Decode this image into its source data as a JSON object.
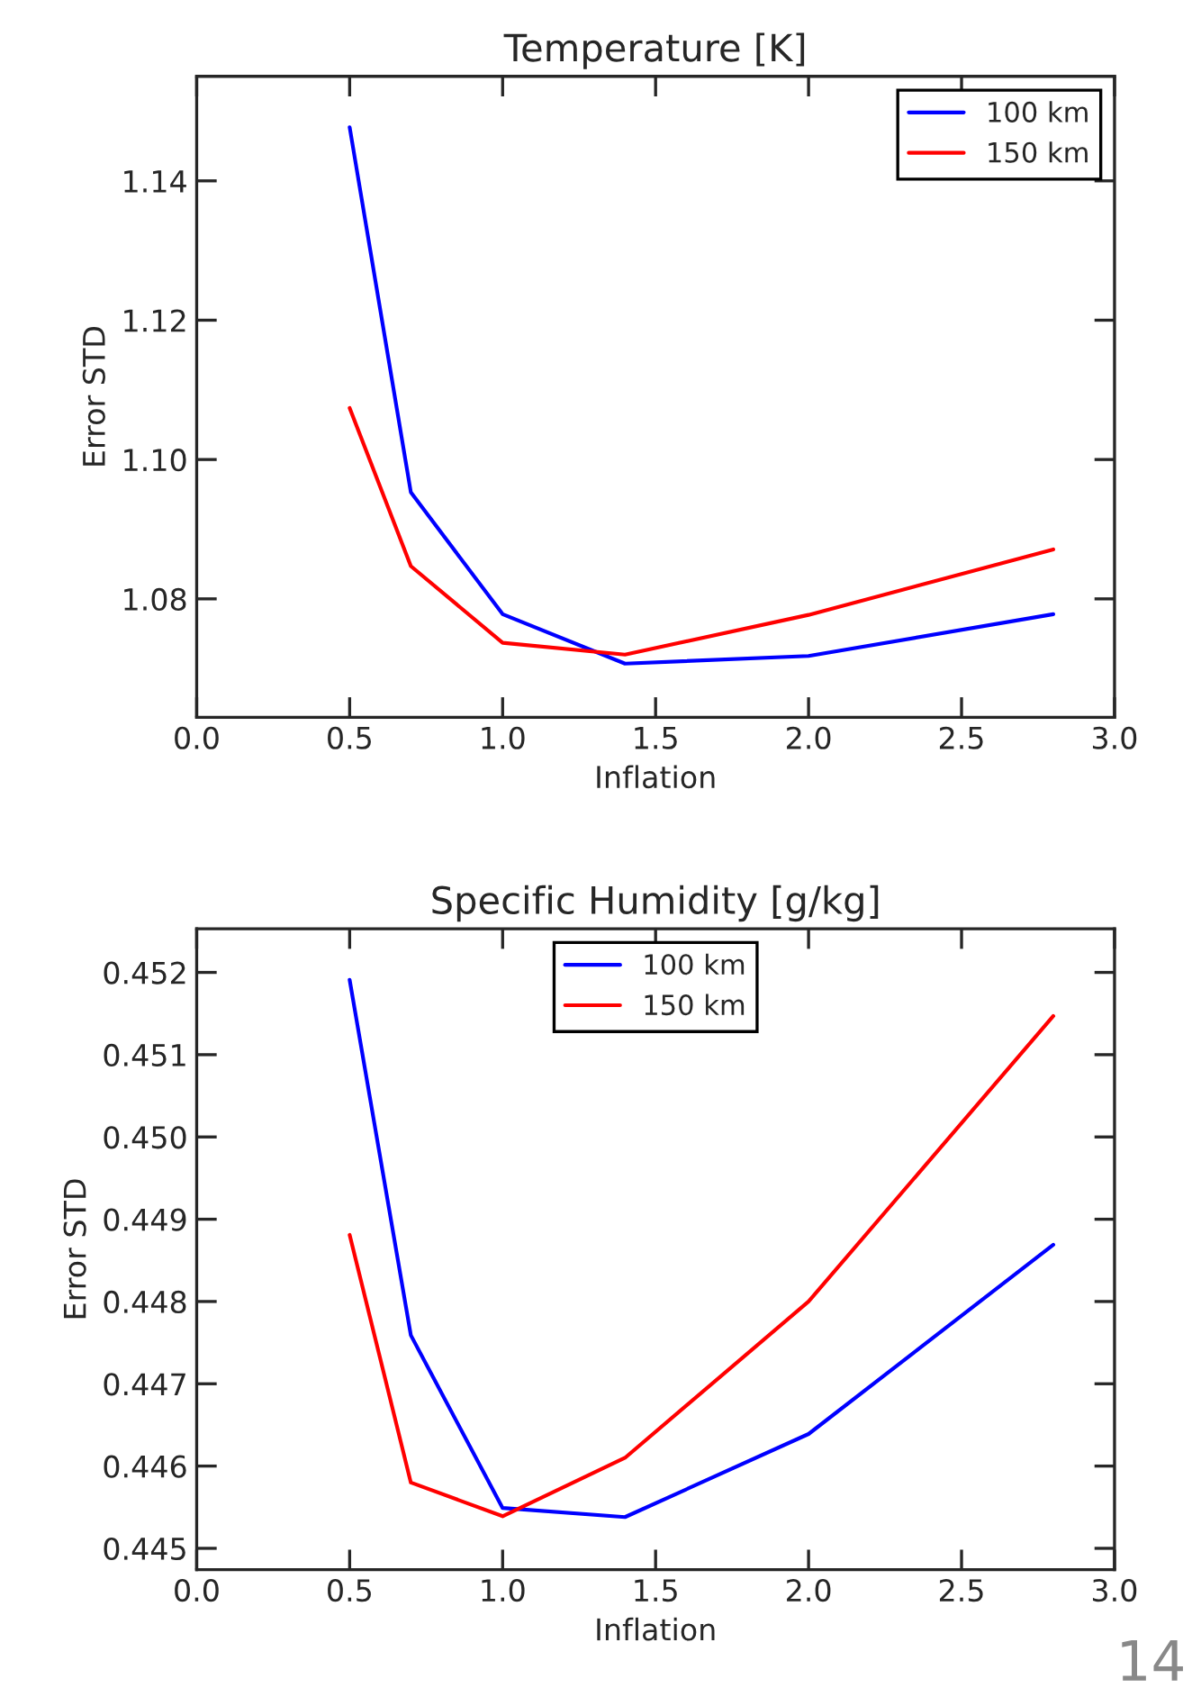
{
  "chart_data": [
    {
      "type": "line",
      "title": "Temperature [K]",
      "xlabel": "Inflation",
      "ylabel": "Error STD",
      "x": [
        0.5,
        0.7,
        1.0,
        1.4,
        2.0,
        2.8
      ],
      "series": [
        {
          "name": "100 km",
          "color": "#0000ff",
          "values": [
            1.1477,
            1.0953,
            1.0778,
            1.0707,
            1.0718,
            1.0778
          ]
        },
        {
          "name": "150 km",
          "color": "#ff0000",
          "values": [
            1.1074,
            1.0847,
            1.0737,
            1.072,
            1.0777,
            1.0871
          ]
        }
      ],
      "xlim": [
        0.0,
        3.0
      ],
      "xticks": [
        {
          "value": 0.0,
          "label": "0.0"
        },
        0.5,
        {
          "value": 1.0,
          "label": "1.0"
        },
        1.5,
        {
          "value": 2.0,
          "label": "2.0"
        },
        2.5,
        {
          "value": 3.0,
          "label": "3.0"
        }
      ],
      "ylim": [
        1.063,
        1.155
      ],
      "yticks": [
        1.08,
        {
          "value": 1.1,
          "label": "1.10"
        },
        1.12,
        1.14
      ],
      "legend": "top right",
      "grid": false,
      "line_style": "solid"
    },
    {
      "type": "line",
      "title": "Specific Humidity [g/kg]",
      "xlabel": "Inflation",
      "ylabel": "Error STD",
      "x": [
        0.5,
        0.7,
        1.0,
        1.4,
        2.0,
        2.8
      ],
      "series": [
        {
          "name": "100 km",
          "color": "#0000ff",
          "values": [
            0.45191,
            0.44759,
            0.44549,
            0.44538,
            0.44639,
            0.44869
          ]
        },
        {
          "name": "150 km",
          "color": "#ff0000",
          "values": [
            0.44881,
            0.4458,
            0.44539,
            0.4461,
            0.448,
            0.45147
          ]
        }
      ],
      "xlim": [
        0.0,
        3.0
      ],
      "xticks": [
        {
          "value": 0.0,
          "label": "0.0"
        },
        0.5,
        {
          "value": 1.0,
          "label": "1.0"
        },
        1.5,
        {
          "value": 2.0,
          "label": "2.0"
        },
        2.5,
        {
          "value": 3.0,
          "label": "3.0"
        }
      ],
      "ylim": [
        0.44474,
        0.45253
      ],
      "yticks": [
        0.445,
        0.446,
        0.447,
        0.448,
        0.449,
        {
          "value": 0.45,
          "label": "0.450"
        },
        0.451,
        0.452
      ],
      "legend": "top",
      "grid": false,
      "line_style": "solid",
      "annotations": [
        "14"
      ]
    }
  ]
}
